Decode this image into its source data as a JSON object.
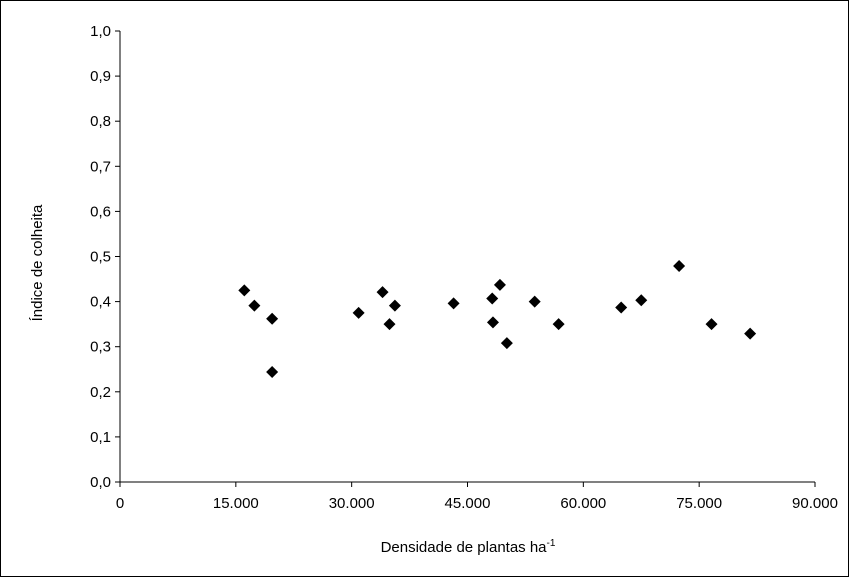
{
  "chart_data": {
    "type": "scatter",
    "xlabel": "Densidade de plantas ha",
    "xlabel_sup": "-1",
    "ylabel": "Índice de colheita",
    "xlim": [
      0,
      90000
    ],
    "ylim": [
      0,
      1.0
    ],
    "grid": false,
    "marker": "diamond",
    "marker_color": "#000000",
    "x_ticks": [
      "0",
      "15.000",
      "30.000",
      "45.000",
      "60.000",
      "75.000",
      "90.000"
    ],
    "y_ticks": [
      "0,0",
      "0,1",
      "0,2",
      "0,3",
      "0,4",
      "0,5",
      "0,6",
      "0,7",
      "0,8",
      "0,9",
      "1,0"
    ],
    "points": [
      {
        "x": 16100,
        "y": 0.425
      },
      {
        "x": 17400,
        "y": 0.391
      },
      {
        "x": 19700,
        "y": 0.362
      },
      {
        "x": 19700,
        "y": 0.244
      },
      {
        "x": 30900,
        "y": 0.375
      },
      {
        "x": 34000,
        "y": 0.421
      },
      {
        "x": 34900,
        "y": 0.35
      },
      {
        "x": 35600,
        "y": 0.391
      },
      {
        "x": 43200,
        "y": 0.396
      },
      {
        "x": 48200,
        "y": 0.407
      },
      {
        "x": 48300,
        "y": 0.354
      },
      {
        "x": 49200,
        "y": 0.437
      },
      {
        "x": 50100,
        "y": 0.308
      },
      {
        "x": 53700,
        "y": 0.4
      },
      {
        "x": 56800,
        "y": 0.35
      },
      {
        "x": 64900,
        "y": 0.387
      },
      {
        "x": 67500,
        "y": 0.403
      },
      {
        "x": 72400,
        "y": 0.479
      },
      {
        "x": 76600,
        "y": 0.35
      },
      {
        "x": 81600,
        "y": 0.329
      }
    ]
  }
}
